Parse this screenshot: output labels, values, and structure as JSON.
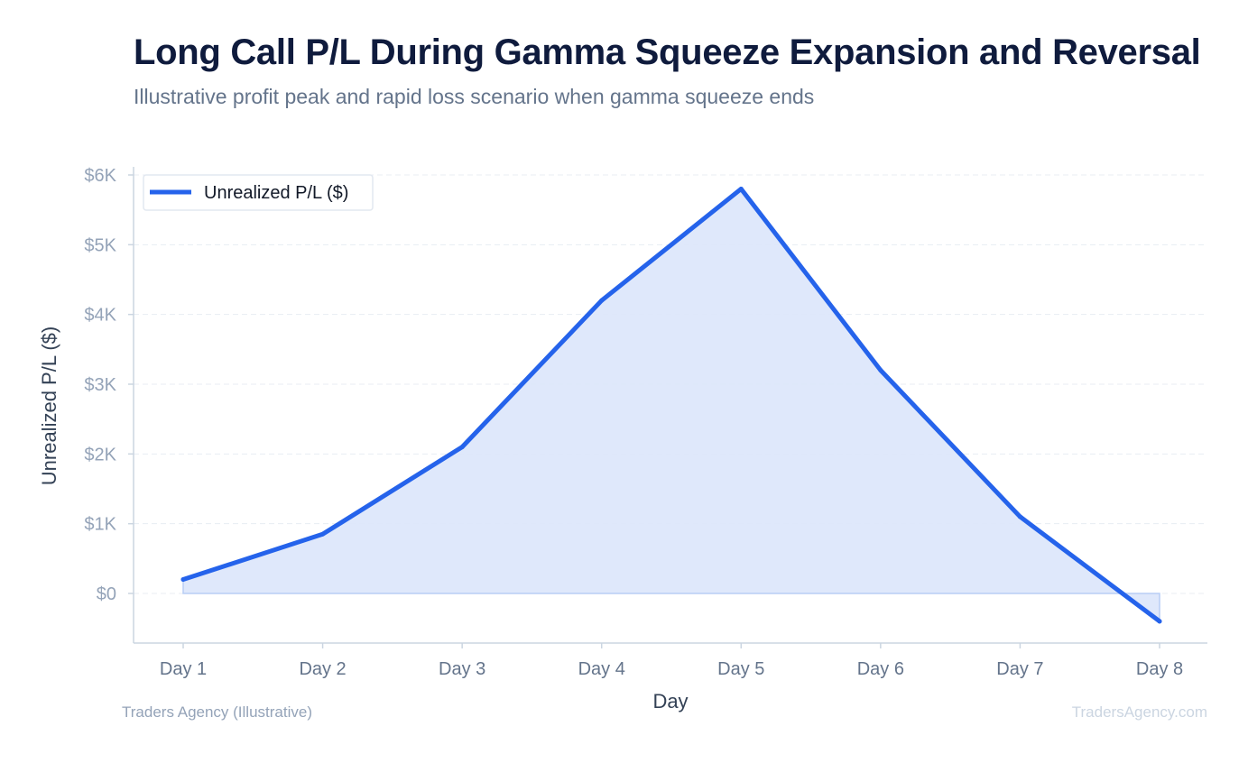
{
  "chart_data": {
    "type": "area",
    "title": "Long Call P/L During Gamma Squeeze Expansion and Reversal",
    "subtitle": "Illustrative profit peak and rapid loss scenario when gamma squeeze ends",
    "xlabel": "Day",
    "ylabel": "Unrealized P/L ($)",
    "categories": [
      "Day 1",
      "Day 2",
      "Day 3",
      "Day 4",
      "Day 5",
      "Day 6",
      "Day 7",
      "Day 8"
    ],
    "series": [
      {
        "name": "Unrealized P/L ($)",
        "values": [
          200,
          850,
          2100,
          4200,
          5800,
          3200,
          1100,
          -400
        ]
      }
    ],
    "ylim": [
      -700,
      6100
    ],
    "yticks": [
      0,
      1000,
      2000,
      3000,
      4000,
      5000,
      6000
    ],
    "ytick_labels": [
      "$0",
      "$1K",
      "$2K",
      "$3K",
      "$4K",
      "$5K",
      "$6K"
    ],
    "grid": true,
    "legend_position": "top-left",
    "colors": {
      "line": "#2563eb",
      "fill": "#dbe6fb"
    }
  },
  "footer": {
    "source": "Traders Agency (Illustrative)",
    "watermark": "TradersAgency.com"
  }
}
